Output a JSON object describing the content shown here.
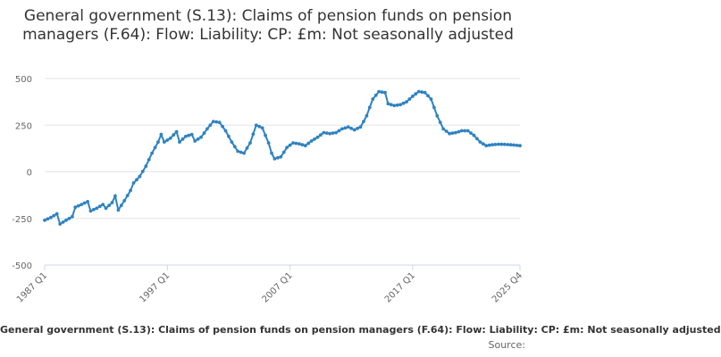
{
  "chart_data": {
    "type": "line",
    "title": "General government (S.13): Claims of pension funds on pension managers (F.64): Flow: Liability: CP: £m: Not seasonally adjusted",
    "xlabel": "",
    "ylabel": "",
    "ylim": [
      -500,
      500
    ],
    "yticks": [
      "500",
      "250",
      "0",
      "-250",
      "-500"
    ],
    "xticks": [
      "1987 Q1",
      "1997 Q1",
      "2007 Q1",
      "2017 Q1",
      "2025 Q4"
    ],
    "grid": "horizontal",
    "legend": "bottom",
    "color": "#2f83c0",
    "series": [
      {
        "name": "General government (S.13): Claims of pension funds on pension managers (F.64): Flow: Liability: CP: £m: Not seasonally adjusted",
        "anchors": [
          [
            "1987 Q1",
            -260
          ],
          [
            "1987 Q3",
            -245
          ],
          [
            "1988 Q1",
            -225
          ],
          [
            "1988 Q2",
            -280
          ],
          [
            "1988 Q4",
            -260
          ],
          [
            "1989 Q2",
            -240
          ],
          [
            "1989 Q3",
            -190
          ],
          [
            "1990 Q1",
            -175
          ],
          [
            "1990 Q3",
            -160
          ],
          [
            "1990 Q4",
            -210
          ],
          [
            "1991 Q2",
            -195
          ],
          [
            "1991 Q4",
            -175
          ],
          [
            "1992 Q1",
            -195
          ],
          [
            "1992 Q3",
            -165
          ],
          [
            "1992 Q4",
            -130
          ],
          [
            "1993 Q1",
            -205
          ],
          [
            "1993 Q3",
            -155
          ],
          [
            "1994 Q1",
            -100
          ],
          [
            "1994 Q2",
            -60
          ],
          [
            "1994 Q4",
            -25
          ],
          [
            "1995 Q2",
            30
          ],
          [
            "1995 Q4",
            100
          ],
          [
            "1996 Q2",
            160
          ],
          [
            "1996 Q3",
            200
          ],
          [
            "1996 Q4",
            160
          ],
          [
            "1997 Q2",
            180
          ],
          [
            "1997 Q4",
            215
          ],
          [
            "1998 Q1",
            160
          ],
          [
            "1998 Q3",
            190
          ],
          [
            "1999 Q1",
            200
          ],
          [
            "1999 Q2",
            165
          ],
          [
            "1999 Q4",
            185
          ],
          [
            "2000 Q2",
            230
          ],
          [
            "2000 Q4",
            270
          ],
          [
            "2001 Q2",
            265
          ],
          [
            "2001 Q4",
            220
          ],
          [
            "2002 Q2",
            160
          ],
          [
            "2002 Q4",
            110
          ],
          [
            "2003 Q2",
            100
          ],
          [
            "2003 Q4",
            155
          ],
          [
            "2004 Q2",
            250
          ],
          [
            "2004 Q4",
            235
          ],
          [
            "2005 Q2",
            155
          ],
          [
            "2005 Q3",
            100
          ],
          [
            "2005 Q4",
            70
          ],
          [
            "2006 Q2",
            80
          ],
          [
            "2006 Q4",
            130
          ],
          [
            "2007 Q2",
            155
          ],
          [
            "2007 Q4",
            150
          ],
          [
            "2008 Q2",
            140
          ],
          [
            "2008 Q4",
            165
          ],
          [
            "2009 Q2",
            185
          ],
          [
            "2009 Q4",
            210
          ],
          [
            "2010 Q2",
            205
          ],
          [
            "2010 Q4",
            210
          ],
          [
            "2011 Q2",
            230
          ],
          [
            "2011 Q4",
            240
          ],
          [
            "2012 Q2",
            225
          ],
          [
            "2012 Q4",
            240
          ],
          [
            "2013 Q2",
            300
          ],
          [
            "2013 Q4",
            390
          ],
          [
            "2014 Q2",
            430
          ],
          [
            "2014 Q4",
            425
          ],
          [
            "2015 Q1",
            365
          ],
          [
            "2015 Q3",
            355
          ],
          [
            "2016 Q1",
            360
          ],
          [
            "2016 Q3",
            375
          ],
          [
            "2017 Q1",
            405
          ],
          [
            "2017 Q3",
            430
          ],
          [
            "2018 Q1",
            425
          ],
          [
            "2018 Q3",
            390
          ],
          [
            "2019 Q1",
            300
          ],
          [
            "2019 Q3",
            230
          ],
          [
            "2020 Q1",
            205
          ],
          [
            "2020 Q3",
            210
          ],
          [
            "2021 Q1",
            220
          ],
          [
            "2021 Q3",
            220
          ],
          [
            "2022 Q1",
            195
          ],
          [
            "2022 Q3",
            160
          ],
          [
            "2023 Q1",
            140
          ],
          [
            "2023 Q3",
            145
          ],
          [
            "2024 Q1",
            148
          ],
          [
            "2024 Q3",
            147
          ],
          [
            "2025 Q1",
            145
          ],
          [
            "2025 Q4",
            140
          ]
        ]
      }
    ]
  },
  "legend_text": "General government (S.13): Claims of pension funds on pension managers (F.64): Flow: Liability: CP: £m: Not seasonally adjusted",
  "source_text": "Source:"
}
